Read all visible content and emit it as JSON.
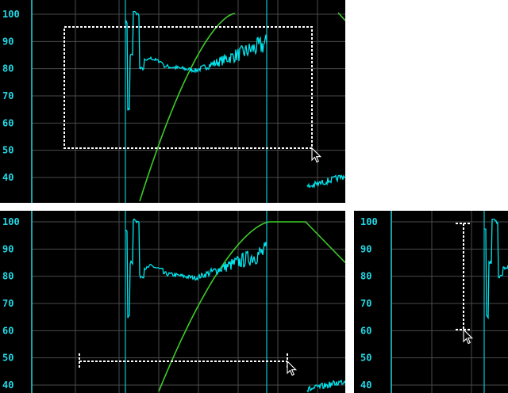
{
  "chart_data": [
    {
      "type": "line",
      "title": "",
      "xlabel": "",
      "ylabel": "",
      "yticks": [
        "100",
        "90",
        "80",
        "70",
        "60",
        "50",
        "40"
      ],
      "ylim": [
        35,
        100
      ],
      "grid": true,
      "series": [
        {
          "color": "#00e5ee",
          "kind": "noisy-signal"
        },
        {
          "color": "#3ecc28",
          "kind": "rising-curve"
        }
      ],
      "markers": [
        {
          "color": "#00c8d0",
          "kind": "vertical-line"
        },
        {
          "color": "#00c8d0",
          "kind": "vertical-line"
        }
      ],
      "selection": {
        "kind": "rectangle",
        "y_top": 96,
        "y_bottom": 50.5
      },
      "cursor": "arrow-pointer"
    },
    {
      "type": "line",
      "title": "",
      "xlabel": "",
      "ylabel": "",
      "yticks": [
        "100",
        "90",
        "80",
        "70",
        "60",
        "50",
        "40"
      ],
      "ylim": [
        38,
        100
      ],
      "grid": true,
      "series": [
        {
          "color": "#00e5ee",
          "kind": "noisy-signal"
        },
        {
          "color": "#3ecc28",
          "kind": "rising-plateau-curve"
        }
      ],
      "markers": [
        {
          "color": "#00c8d0",
          "kind": "vertical-line"
        },
        {
          "color": "#00c8d0",
          "kind": "vertical-line"
        }
      ],
      "selection": {
        "kind": "horizontal-span",
        "y": 49
      },
      "cursor": "arrow-pointer"
    },
    {
      "type": "line",
      "title": "",
      "xlabel": "",
      "ylabel": "",
      "yticks": [
        "100",
        "90",
        "80",
        "70",
        "60",
        "50",
        "40"
      ],
      "ylim": [
        38,
        100
      ],
      "grid": true,
      "series": [
        {
          "color": "#00e5ee",
          "kind": "noisy-signal"
        }
      ],
      "markers": [
        {
          "color": "#00c8d0",
          "kind": "vertical-line"
        }
      ],
      "selection": {
        "kind": "vertical-span",
        "y_top": 98.5,
        "y_bottom": 60
      },
      "cursor": "arrow-pointer"
    }
  ]
}
